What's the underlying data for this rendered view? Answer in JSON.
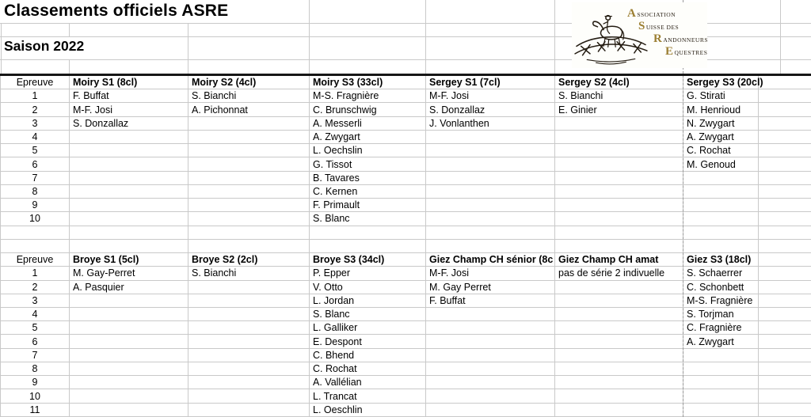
{
  "sheet": {
    "title": "Classements officiels ASRE",
    "subtitle": "Saison 2022"
  },
  "logo": {
    "gold": "#9c7f33",
    "ink": "#2b2217",
    "lines": [
      {
        "initial": "A",
        "rest": "SSOCIATION"
      },
      {
        "initial": "S",
        "rest": "UISSE DES"
      },
      {
        "initial": "R",
        "rest": "ANDONNEURS"
      },
      {
        "initial": "E",
        "rest": "QUESTRES"
      }
    ]
  },
  "tables": [
    {
      "index_header": "Epreuve",
      "row_count": 10,
      "columns": [
        {
          "label": "Moiry S1 (8cl)",
          "names": [
            "F. Buffat",
            "M-F. Josi",
            "S. Donzallaz"
          ]
        },
        {
          "label": "Moiry S2 (4cl)",
          "names": [
            "S. Bianchi",
            "A. Pichonnat"
          ]
        },
        {
          "label": "Moiry S3 (33cl)",
          "names": [
            "M-S. Fragnière",
            "C. Brunschwig",
            "A. Messerli",
            "A. Zwygart",
            "L. Oechslin",
            "G. Tissot",
            "B. Tavares",
            "C. Kernen",
            "F. Primault",
            "S. Blanc"
          ]
        },
        {
          "label": "Sergey S1 (7cl)",
          "names": [
            "M-F. Josi",
            "S. Donzallaz",
            "J. Vonlanthen"
          ]
        },
        {
          "label": "Sergey S2 (4cl)",
          "names": [
            "S. Bianchi",
            "E. Ginier"
          ]
        },
        {
          "label": "Sergey S3 (20cl)",
          "names": [
            "G. Stirati",
            "M. Henrioud",
            "N. Zwygart",
            "A. Zwygart",
            "C. Rochat",
            "M. Genoud"
          ]
        }
      ]
    },
    {
      "index_header": "Epreuve",
      "row_count": 11,
      "columns": [
        {
          "label": "Broye S1 (5cl)",
          "names": [
            "M. Gay-Perret",
            "A. Pasquier"
          ]
        },
        {
          "label": "Broye S2 (2cl)",
          "names": [
            "S. Bianchi"
          ]
        },
        {
          "label": "Broye S3 (34cl)",
          "names": [
            "P. Epper",
            "V. Otto",
            "L. Jordan",
            "S. Blanc",
            "L. Galliker",
            "E. Despont",
            "C. Bhend",
            "C. Rochat",
            "A. Vallélian",
            "L. Trancat",
            "L. Oeschlin"
          ]
        },
        {
          "label": "Giez Champ CH sénior (8c",
          "names": [
            "M-F. Josi",
            "M. Gay Perret",
            "F. Buffat"
          ]
        },
        {
          "label": "Giez Champ CH amat",
          "names": [
            "pas de série 2 indivuelle"
          ]
        },
        {
          "label": "Giez S3 (18cl)",
          "names": [
            "S. Schaerrer",
            "C. Schonbett",
            "M-S. Fragnière",
            "S. Torjman",
            "C. Fragnière",
            "A. Zwygart"
          ]
        }
      ]
    }
  ]
}
